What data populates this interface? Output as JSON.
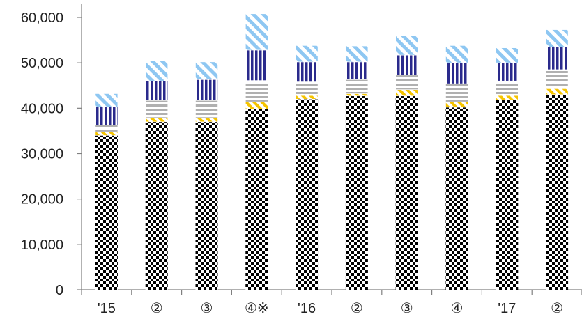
{
  "chart_data": {
    "type": "bar",
    "stacked": true,
    "categories": [
      "'15",
      "②",
      "③",
      "④※",
      "'16",
      "②",
      "③",
      "④",
      "'17",
      "②"
    ],
    "ylim": [
      0,
      60000
    ],
    "yticks": [
      0,
      10000,
      20000,
      30000,
      40000,
      50000,
      60000
    ],
    "ytick_labels": [
      "0",
      "10,000",
      "20,000",
      "30,000",
      "40,000",
      "50,000",
      "60,000"
    ],
    "grid": false,
    "legend": "none",
    "series": [
      {
        "values": [
          34000,
          37000,
          37000,
          39800,
          42000,
          42700,
          42700,
          40200,
          41800,
          43000
        ],
        "color": "#000000",
        "pattern": "checker"
      },
      {
        "values": [
          800,
          900,
          900,
          1600,
          800,
          500,
          1400,
          1200,
          1000,
          1300
        ],
        "color": "#f5c400",
        "pattern": "diagonal"
      },
      {
        "values": [
          1500,
          3800,
          3800,
          4700,
          3000,
          3100,
          3200,
          4000,
          3200,
          4200
        ],
        "color": "#b0b0b0",
        "pattern": "horizontal"
      },
      {
        "values": [
          4000,
          4300,
          4600,
          6700,
          4400,
          3900,
          4400,
          4600,
          4000,
          5000
        ],
        "color": "#2a2a8c",
        "pattern": "vertical"
      },
      {
        "values": [
          2900,
          4400,
          3900,
          8000,
          3600,
          3500,
          4300,
          3800,
          3300,
          3800
        ],
        "color": "#8ec7f2",
        "pattern": "diagonal-light"
      }
    ]
  }
}
